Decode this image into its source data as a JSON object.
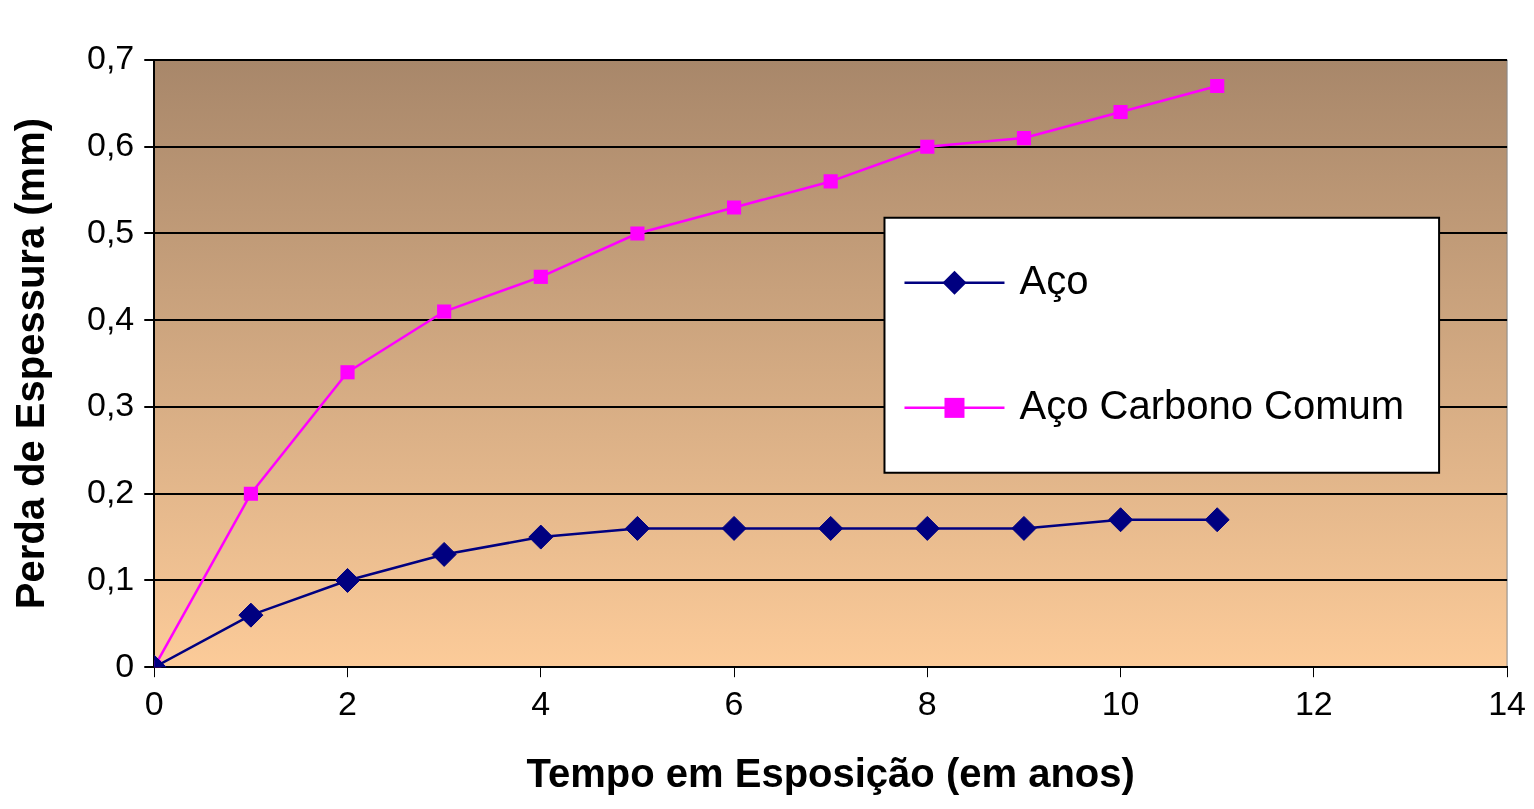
{
  "chart_data": {
    "type": "line",
    "xlabel": "Tempo em Esposição (em anos)",
    "ylabel": "Perda de Espessura (mm)",
    "x": [
      0,
      1,
      2,
      3,
      4,
      5,
      6,
      7,
      8,
      9,
      10,
      11
    ],
    "series": [
      {
        "name": "Aço",
        "color": "#000080",
        "marker": "diamond",
        "values": [
          0,
          0.06,
          0.1,
          0.13,
          0.15,
          0.16,
          0.16,
          0.16,
          0.16,
          0.16,
          0.17,
          0.17
        ]
      },
      {
        "name": "Aço Carbono Comum",
        "color": "#ff00ff",
        "marker": "square",
        "values": [
          0,
          0.2,
          0.34,
          0.41,
          0.45,
          0.5,
          0.53,
          0.56,
          0.6,
          0.61,
          0.64,
          0.67
        ]
      }
    ],
    "xlim": [
      0,
      14
    ],
    "xticks": [
      0,
      2,
      4,
      6,
      8,
      10,
      12,
      14
    ],
    "ylim": [
      0,
      0.7
    ],
    "yticks": [
      {
        "value": 0,
        "label": "0"
      },
      {
        "value": 0.1,
        "label": "0,1"
      },
      {
        "value": 0.2,
        "label": "0,2"
      },
      {
        "value": 0.3,
        "label": "0,3"
      },
      {
        "value": 0.4,
        "label": "0,4"
      },
      {
        "value": 0.5,
        "label": "0,5"
      },
      {
        "value": 0.6,
        "label": "0,6"
      },
      {
        "value": 0.7,
        "label": "0,7"
      }
    ],
    "grid": "y",
    "legend": "right"
  }
}
